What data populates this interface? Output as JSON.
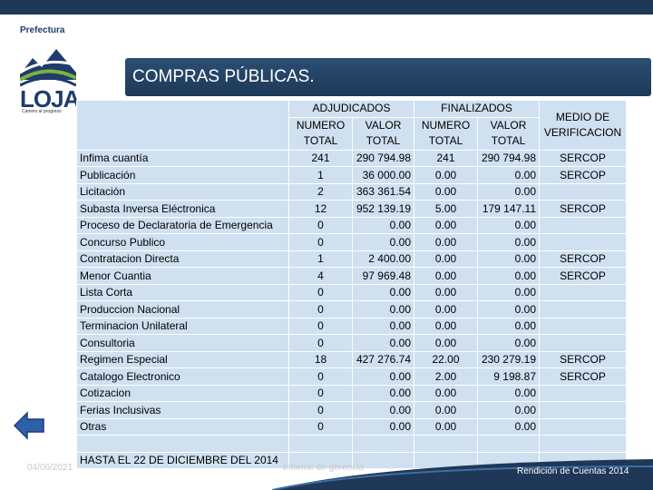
{
  "logo": {
    "top_text": "Prefectura",
    "big_text": "LOJA",
    "sub_text": "Camino al progreso"
  },
  "banner": {
    "title": "COMPRAS PÚBLICAS."
  },
  "table": {
    "group_headers": {
      "adjudicados": "ADJUDICADOS",
      "finalizados": "FINALIZADOS"
    },
    "sub_headers": {
      "numero": "NUMERO TOTAL",
      "valor": "VALOR TOTAL"
    },
    "medio_header": "MEDIO DE VERIFICACION",
    "rows": [
      {
        "label": "Infima cuantía",
        "adj_num": "241",
        "adj_val": "290 794.98",
        "fin_num": "241",
        "fin_val": "290 794.98",
        "medio": "SERCOP"
      },
      {
        "label": "Publicación",
        "adj_num": "1",
        "adj_val": "36 000.00",
        "fin_num": "0.00",
        "fin_val": "0.00",
        "medio": "SERCOP"
      },
      {
        "label": "Licitación",
        "adj_num": "2",
        "adj_val": "363 361.54",
        "fin_num": "0.00",
        "fin_val": "0.00",
        "medio": ""
      },
      {
        "label": "Subasta Inversa Eléctronica",
        "adj_num": "12",
        "adj_val": "952 139.19",
        "fin_num": "5.00",
        "fin_val": "179 147.11",
        "medio": "SERCOP"
      },
      {
        "label": "Proceso de Declaratoria de Emergencia",
        "adj_num": "0",
        "adj_val": "0.00",
        "fin_num": "0.00",
        "fin_val": "0.00",
        "medio": ""
      },
      {
        "label": "Concurso Publico",
        "adj_num": "0",
        "adj_val": "0.00",
        "fin_num": "0.00",
        "fin_val": "0.00",
        "medio": ""
      },
      {
        "label": "Contratacion Directa",
        "adj_num": "1",
        "adj_val": "2 400.00",
        "fin_num": "0.00",
        "fin_val": "0.00",
        "medio": "SERCOP"
      },
      {
        "label": "Menor Cuantia",
        "adj_num": "4",
        "adj_val": "97 969.48",
        "fin_num": "0.00",
        "fin_val": "0.00",
        "medio": "SERCOP"
      },
      {
        "label": "Lista Corta",
        "adj_num": "0",
        "adj_val": "0.00",
        "fin_num": "0.00",
        "fin_val": "0.00",
        "medio": ""
      },
      {
        "label": "Produccion Nacional",
        "adj_num": "0",
        "adj_val": "0.00",
        "fin_num": "0.00",
        "fin_val": "0.00",
        "medio": ""
      },
      {
        "label": "Terminacion Unilateral",
        "adj_num": "0",
        "adj_val": "0.00",
        "fin_num": "0.00",
        "fin_val": "0.00",
        "medio": ""
      },
      {
        "label": "Consultoria",
        "adj_num": "0",
        "adj_val": "0.00",
        "fin_num": "0.00",
        "fin_val": "0.00",
        "medio": ""
      },
      {
        "label": "Regimen Especial",
        "adj_num": "18",
        "adj_val": "427 276.74",
        "fin_num": "22.00",
        "fin_val": "230 279.19",
        "medio": "SERCOP"
      },
      {
        "label": "Catalogo Electronico",
        "adj_num": "0",
        "adj_val": "0.00",
        "fin_num": "2.00",
        "fin_val": "9 198.87",
        "medio": "SERCOP"
      },
      {
        "label": "Cotizacion",
        "adj_num": "0",
        "adj_val": "0.00",
        "fin_num": "0.00",
        "fin_val": "0.00",
        "medio": ""
      },
      {
        "label": "Ferias Inclusivas",
        "adj_num": "0",
        "adj_val": "0.00",
        "fin_num": "0.00",
        "fin_val": "0.00",
        "medio": ""
      },
      {
        "label": "Otras",
        "adj_num": "0",
        "adj_val": "0.00",
        "fin_num": "0.00",
        "fin_val": "0.00",
        "medio": ""
      }
    ],
    "footer_note": "HASTA EL 22 DE DICIEMBRE DEL 2014"
  },
  "footer": {
    "date": "04/06/2021",
    "center": "Informe de gerencia",
    "right": "Rendición de Cuentas 2014"
  },
  "colors": {
    "banner": "#1f3857",
    "table_bg": "#cfe0f0",
    "arrow": "#2f5fa8",
    "footer_bar": "#1f3857"
  },
  "icons": {
    "back": "back-arrow-icon"
  }
}
